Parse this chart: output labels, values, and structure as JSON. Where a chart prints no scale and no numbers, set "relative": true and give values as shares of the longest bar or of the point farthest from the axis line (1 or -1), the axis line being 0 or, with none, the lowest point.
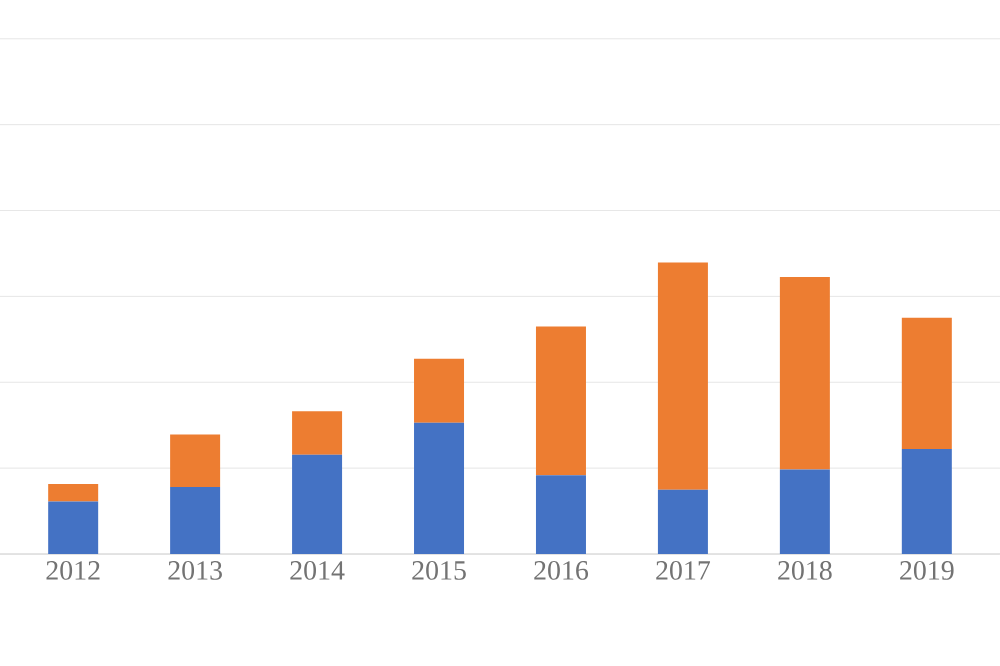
{
  "chart_data": {
    "type": "bar",
    "stacked": true,
    "relative": true,
    "grid": "y",
    "categories": [
      "2012",
      "2013",
      "2014",
      "2015",
      "2016",
      "2017",
      "2018",
      "2019"
    ],
    "series": [
      {
        "color": "#4472c4",
        "values": [
          0.18,
          0.23,
          0.34,
          0.45,
          0.27,
          0.22,
          0.29,
          0.36
        ]
      },
      {
        "color": "#ed7d31",
        "values": [
          0.06,
          0.18,
          0.15,
          0.22,
          0.51,
          0.78,
          0.66,
          0.45
        ]
      }
    ]
  }
}
